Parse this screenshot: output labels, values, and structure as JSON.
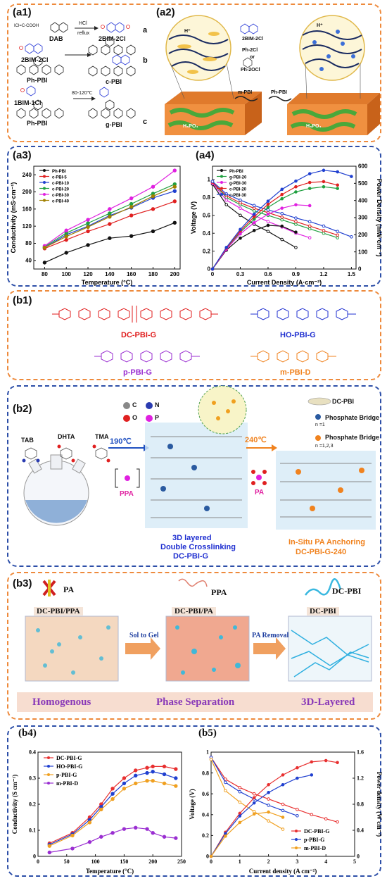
{
  "a1": {
    "tag": "(a1)",
    "reagent_left": "ICl=C-COOH",
    "dab": "DAB",
    "cond1": "HCl",
    "cond2": "reflux",
    "bim2": "2BIM-2Cl",
    "row_a": "a",
    "bim2b": "2BIM-2Cl",
    "phpbi1": "Ph-PBI",
    "cpbi": "c-PBI",
    "row_b": "b",
    "bim1": "1BIM-1Cl",
    "cond3": "80-120℃",
    "phpbi2": "Ph-PBI",
    "gpbi": "g-PBI",
    "row_c": "c"
  },
  "a2": {
    "tag": "(a2)",
    "bim": "2BIM-2Cl",
    "ph2cl": "Ph-2Cl",
    "or": "or",
    "ph2ocl": "Ph-2OCl",
    "mpbi": "m-PBI",
    "phpbi": "Ph-PBI",
    "h3po4_a": "H₃PO₄",
    "h3po4_b": "H₃PO₄",
    "hplus_a": "H⁺",
    "hplus_b": "H⁺"
  },
  "a3": {
    "tag": "(a3)",
    "chart_data": {
      "type": "line",
      "xlabel": "Temperature (°C)",
      "ylabel": "Conductivity (mS·cm⁻¹)",
      "xlim": [
        70,
        205
      ],
      "ylim": [
        20,
        260
      ],
      "xticks": [
        80,
        100,
        120,
        140,
        160,
        180,
        200
      ],
      "yticks": [
        40,
        80,
        120,
        160,
        200,
        240
      ],
      "legend_position": "top-left",
      "x": [
        80,
        100,
        120,
        140,
        160,
        180,
        200
      ],
      "series": [
        {
          "name": "Ph-PBI",
          "color": "#111111",
          "values": [
            35,
            58,
            76,
            92,
            97,
            108,
            128
          ]
        },
        {
          "name": "c-PBI-5",
          "color": "#e02020",
          "values": [
            68,
            88,
            108,
            125,
            145,
            160,
            178
          ]
        },
        {
          "name": "c-PBI-10",
          "color": "#2040d0",
          "values": [
            70,
            100,
            120,
            145,
            163,
            186,
            202
          ]
        },
        {
          "name": "c-PBI-20",
          "color": "#20a040",
          "values": [
            72,
            104,
            127,
            150,
            172,
            196,
            218
          ]
        },
        {
          "name": "c-PBI-30",
          "color": "#e020e0",
          "values": [
            74,
            110,
            135,
            160,
            185,
            212,
            250
          ]
        },
        {
          "name": "c-PBI-40",
          "color": "#a08000",
          "values": [
            70,
            96,
            118,
            142,
            165,
            190,
            212
          ]
        }
      ]
    }
  },
  "a4": {
    "tag": "(a4)",
    "chart_data": {
      "type": "line",
      "xlabel": "Current Density (A·cm⁻²)",
      "ylabel": "Voltage (V)",
      "y2label": "Power Density (mW·cm⁻²)",
      "xlim": [
        0,
        1.55
      ],
      "ylim": [
        0,
        1.15
      ],
      "y2lim": [
        0,
        600
      ],
      "xticks": [
        0.0,
        0.3,
        0.6,
        0.9,
        1.2,
        1.5
      ],
      "yticks": [
        0.0,
        0.2,
        0.4,
        0.6,
        0.8,
        1.0
      ],
      "y2ticks": [
        0,
        100,
        200,
        300,
        400,
        500,
        600
      ],
      "x": [
        0,
        0.15,
        0.3,
        0.45,
        0.6,
        0.75,
        0.9,
        1.05,
        1.2,
        1.35,
        1.5
      ],
      "polarization_series": [
        {
          "name": "Ph-PBI",
          "color": "#111111",
          "values": [
            0.95,
            0.72,
            0.6,
            0.5,
            0.42,
            0.33,
            0.24,
            null,
            null,
            null,
            null
          ]
        },
        {
          "name": "g-PBI-20",
          "color": "#20a040",
          "values": [
            0.97,
            0.8,
            0.72,
            0.65,
            0.6,
            0.55,
            0.5,
            0.45,
            0.4,
            0.35,
            null
          ]
        },
        {
          "name": "g-PBI-30",
          "color": "#e020e0",
          "values": [
            0.96,
            0.77,
            0.68,
            0.6,
            0.53,
            0.47,
            0.4,
            0.35,
            null,
            null,
            null
          ]
        },
        {
          "name": "c-PBI-20",
          "color": "#e02020",
          "values": [
            0.97,
            0.82,
            0.74,
            0.68,
            0.63,
            0.58,
            0.53,
            0.48,
            0.43,
            0.38,
            null
          ]
        },
        {
          "name": "c-PBI-30",
          "color": "#2040d0",
          "values": [
            0.98,
            0.84,
            0.77,
            0.71,
            0.66,
            0.62,
            0.57,
            0.53,
            0.48,
            0.42,
            0.36
          ]
        }
      ],
      "power_series": [
        {
          "name": "Ph-PBI",
          "color": "#111111",
          "values": [
            0,
            110,
            180,
            225,
            255,
            250,
            215,
            null,
            null,
            null,
            null
          ]
        },
        {
          "name": "g-PBI-20",
          "color": "#20a040",
          "values": [
            0,
            120,
            215,
            290,
            360,
            410,
            450,
            470,
            480,
            470,
            null
          ]
        },
        {
          "name": "g-PBI-30",
          "color": "#e020e0",
          "values": [
            0,
            115,
            205,
            270,
            320,
            355,
            375,
            370,
            null,
            null,
            null
          ]
        },
        {
          "name": "c-PBI-20",
          "color": "#e02020",
          "values": [
            0,
            122,
            222,
            305,
            378,
            435,
            480,
            505,
            510,
            490,
            null
          ]
        },
        {
          "name": "c-PBI-30",
          "color": "#2040d0",
          "values": [
            0,
            126,
            231,
            320,
            396,
            465,
            513,
            556,
            576,
            567,
            540
          ]
        }
      ]
    }
  },
  "b1": {
    "tag": "(b1)",
    "dcpbig": "DC-PBI-G",
    "hopbig": "HO-PBI-G",
    "ppbig": "p-PBI-G",
    "mpbid": "m-PBI-D"
  },
  "b2": {
    "tag": "(b2)",
    "atom_c": "C",
    "atom_n": "N",
    "atom_o": "O",
    "atom_p": "P",
    "tab": "TAB",
    "dhta": "DHTA",
    "tma": "TMA",
    "t1": "190℃",
    "ppa": "PPA",
    "t2": "240℃",
    "pa": "PA",
    "label1_line1": "3D layered",
    "label1_line2": "Double Crosslinking",
    "label1_line3": "DC-PBI-G",
    "label2_line1": "In-Situ PA Anchoring",
    "label2_line2": "DC-PBI-G-240",
    "dcpbi": "DC-PBI",
    "bridge1": "Phosphate Bridge",
    "bridge1_n": "n =1",
    "bridge2": "Phosphate Bridge",
    "bridge2_n": "n =1,2,3"
  },
  "b3": {
    "tag": "(b3)",
    "pa": "PA",
    "ppa": "PPA",
    "dcpbi_top": "DC-PBI",
    "box1": "DC-PBI/PPA",
    "box2": "DC-PBI/PA",
    "box3": "DC-PBI",
    "arrow1": "Sol to Gel",
    "arrow2": "PA Removal",
    "stage1": "Homogenous",
    "stage2": "Phase Separation",
    "stage3": "3D-Layered"
  },
  "b4": {
    "tag": "(b4)",
    "chart_data": {
      "type": "line",
      "xlabel": "Temperature (°C)",
      "ylabel": "Conductivity (S cm⁻¹)",
      "xlim": [
        0,
        250
      ],
      "ylim": [
        0,
        0.4
      ],
      "xticks": [
        0,
        50,
        100,
        150,
        200,
        250
      ],
      "yticks": [
        0.0,
        0.1,
        0.2,
        0.3,
        0.4
      ],
      "legend_position": "top-left",
      "x": [
        20,
        60,
        90,
        110,
        130,
        150,
        170,
        190,
        200,
        220,
        240
      ],
      "series": [
        {
          "name": "DC-PBI-G",
          "color": "#e83030",
          "values": [
            0.05,
            0.09,
            0.15,
            0.2,
            0.26,
            0.3,
            0.33,
            0.34,
            0.345,
            0.345,
            0.335
          ]
        },
        {
          "name": "HO-PBI-G",
          "color": "#2040d0",
          "values": [
            0.045,
            0.085,
            0.14,
            0.19,
            0.24,
            0.28,
            0.31,
            0.32,
            0.325,
            0.315,
            0.3
          ]
        },
        {
          "name": "p-PBI-G",
          "color": "#f0a020",
          "values": [
            0.04,
            0.08,
            0.13,
            0.18,
            0.22,
            0.26,
            0.28,
            0.29,
            0.29,
            0.28,
            0.27
          ]
        },
        {
          "name": "m-PBI-D",
          "color": "#9a2ed1",
          "values": [
            0.015,
            0.03,
            0.055,
            0.075,
            0.09,
            0.105,
            0.11,
            0.105,
            0.09,
            0.075,
            0.07
          ]
        }
      ]
    }
  },
  "b5": {
    "tag": "(b5)",
    "chart_data": {
      "type": "line",
      "xlabel": "Current density (A cm⁻²)",
      "ylabel": "Voltage (V)",
      "y2label": "Power density (W cm⁻²)",
      "xlim": [
        0,
        5
      ],
      "ylim": [
        0,
        1.0
      ],
      "y2lim": [
        0,
        1.6
      ],
      "xticks": [
        0,
        1,
        2,
        3,
        4,
        5
      ],
      "yticks": [
        0.0,
        0.2,
        0.4,
        0.6,
        0.8,
        1.0
      ],
      "y2ticks": [
        0.0,
        0.4,
        0.8,
        1.2,
        1.6
      ],
      "legend_position": "bottom-right",
      "x": [
        0,
        0.5,
        1,
        1.5,
        2,
        2.5,
        3,
        3.5,
        4,
        4.4
      ],
      "polarization_series": [
        {
          "name": "DC-PBI-G",
          "color": "#e83030",
          "values": [
            0.95,
            0.74,
            0.66,
            0.6,
            0.55,
            0.5,
            0.45,
            0.4,
            0.36,
            0.33
          ]
        },
        {
          "name": "p-PBI-G",
          "color": "#2040d0",
          "values": [
            0.95,
            0.71,
            0.62,
            0.55,
            0.49,
            0.44,
            0.39,
            null,
            null,
            null
          ]
        },
        {
          "name": "m-PBI-D",
          "color": "#f0a020",
          "values": [
            0.93,
            0.63,
            0.52,
            0.43,
            0.34,
            0.26,
            null,
            null,
            null,
            null
          ]
        }
      ],
      "power_series": [
        {
          "name": "DC-PBI-G",
          "color": "#e83030",
          "values": [
            0,
            0.37,
            0.66,
            0.9,
            1.1,
            1.25,
            1.36,
            1.45,
            1.47,
            1.44
          ]
        },
        {
          "name": "p-PBI-G",
          "color": "#2040d0",
          "values": [
            0,
            0.35,
            0.62,
            0.82,
            0.98,
            1.1,
            1.2,
            1.25,
            null,
            null
          ]
        },
        {
          "name": "m-PBI-D",
          "color": "#f0a020",
          "values": [
            0,
            0.31,
            0.52,
            0.65,
            0.68,
            0.6,
            null,
            null,
            null,
            null
          ]
        }
      ]
    }
  }
}
